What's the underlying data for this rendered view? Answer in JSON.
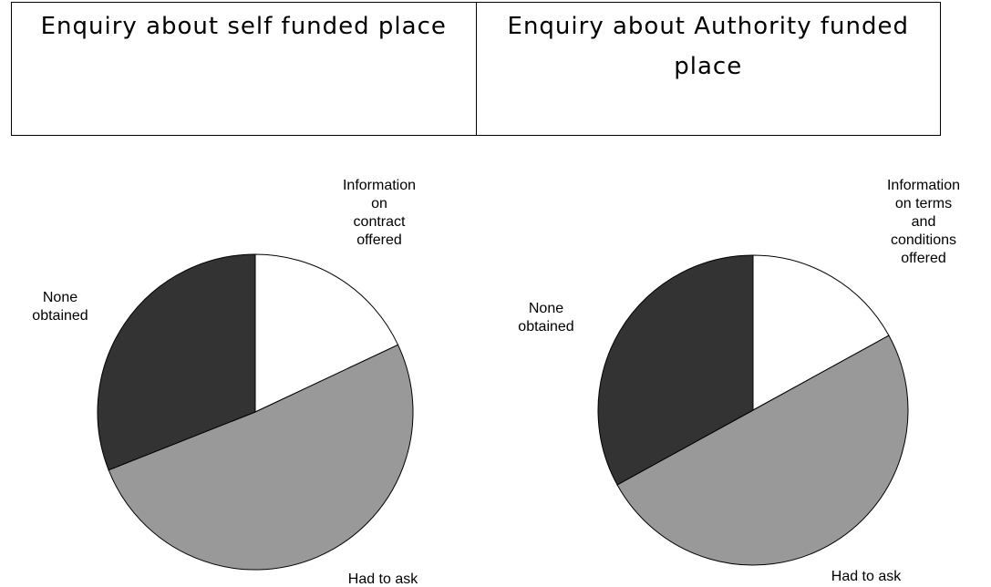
{
  "header": {
    "cells": [
      "Enquiry about self funded place",
      "Enquiry about Authority funded place"
    ]
  },
  "chart_data": [
    {
      "type": "pie",
      "categories": [
        "Information\non\ncontract\noffered",
        "Had to ask",
        "None\nobtained"
      ],
      "values": [
        18,
        51,
        31
      ],
      "colors": [
        "#ffffff",
        "#999999",
        "#333333"
      ]
    },
    {
      "type": "pie",
      "categories": [
        "Information\non terms\nand\nconditions\noffered",
        "Had to ask",
        "None\nobtained"
      ],
      "values": [
        17,
        50,
        33
      ],
      "colors": [
        "#ffffff",
        "#999999",
        "#333333"
      ]
    }
  ]
}
